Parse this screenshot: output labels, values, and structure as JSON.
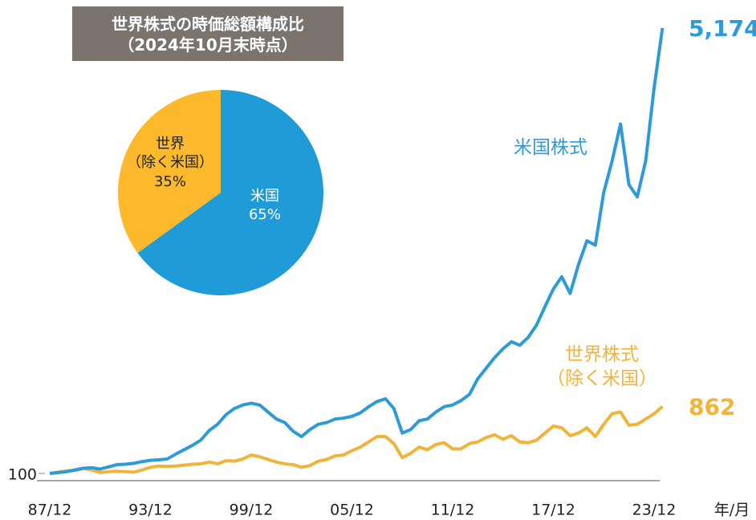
{
  "chart_data": [
    {
      "type": "line",
      "categories": [
        "87/12",
        null,
        null,
        null,
        null,
        null,
        null,
        null,
        null,
        null,
        null,
        null,
        "93/12",
        null,
        null,
        null,
        null,
        null,
        null,
        null,
        null,
        null,
        null,
        null,
        "99/12",
        null,
        null,
        null,
        null,
        null,
        null,
        null,
        null,
        null,
        null,
        null,
        "05/12",
        null,
        null,
        null,
        null,
        null,
        null,
        null,
        null,
        null,
        null,
        null,
        "11/12",
        null,
        null,
        null,
        null,
        null,
        null,
        null,
        null,
        null,
        null,
        null,
        "17/12",
        null,
        null,
        null,
        null,
        null,
        null,
        null,
        null,
        null,
        null,
        null,
        "23/12",
        null
      ],
      "x_unit_label": "年/月",
      "series": [
        {
          "name": "米国株式",
          "color": "#2e9bd8",
          "values": [
            100,
            110,
            120,
            140,
            160,
            165,
            150,
            175,
            200,
            205,
            215,
            235,
            250,
            255,
            265,
            320,
            370,
            420,
            480,
            590,
            660,
            770,
            840,
            880,
            900,
            880,
            800,
            720,
            680,
            580,
            520,
            600,
            660,
            680,
            720,
            730,
            750,
            790,
            860,
            920,
            950,
            840,
            560,
            600,
            700,
            720,
            800,
            860,
            880,
            930,
            1000,
            1180,
            1300,
            1420,
            1520,
            1600,
            1560,
            1650,
            1790,
            2000,
            2200,
            2340,
            2150,
            2480,
            2750,
            2700,
            3300,
            3660,
            4080,
            3390,
            3250,
            3660,
            4490,
            5174
          ],
          "value_labels": [
            null,
            null,
            null,
            null,
            null,
            null,
            null,
            null,
            null,
            null,
            null,
            null,
            null,
            null,
            null,
            null,
            null,
            null,
            null,
            null,
            null,
            null,
            null,
            null,
            null,
            null,
            null,
            null,
            null,
            null,
            null,
            null,
            null,
            null,
            null,
            null,
            null,
            null,
            null,
            null,
            null,
            null,
            null,
            null,
            null,
            null,
            null,
            null,
            null,
            null,
            null,
            null,
            null,
            null,
            null,
            null,
            null,
            null,
            null,
            null,
            null,
            null,
            null,
            null,
            null,
            null,
            null,
            null,
            null,
            null,
            null,
            null,
            null,
            "5,174"
          ]
        },
        {
          "name": "世界株式\n（除く米国）",
          "color": "#f1b43a",
          "values": [
            100,
            115,
            130,
            135,
            155,
            140,
            110,
            120,
            125,
            120,
            115,
            140,
            170,
            185,
            180,
            185,
            195,
            205,
            210,
            230,
            210,
            245,
            240,
            265,
            310,
            290,
            260,
            230,
            210,
            200,
            170,
            190,
            240,
            260,
            300,
            310,
            360,
            400,
            460,
            520,
            520,
            440,
            280,
            330,
            400,
            370,
            430,
            450,
            380,
            380,
            440,
            460,
            510,
            540,
            490,
            530,
            460,
            450,
            480,
            560,
            640,
            620,
            530,
            560,
            620,
            520,
            660,
            780,
            800,
            650,
            660,
            720,
            780,
            862
          ]
        }
      ],
      "ylim": [
        100,
        5200
      ],
      "yticks": [
        100
      ]
    },
    {
      "type": "pie",
      "title": "世界株式の時価総額構成比",
      "subtitle": "（2024年10月末時点）",
      "categories": [
        "米国",
        "世界\n（除く米国）"
      ],
      "values": [
        65,
        35
      ],
      "value_labels": [
        "65%",
        "35%"
      ],
      "colors": [
        "#1f9bd7",
        "#fbb92b"
      ]
    }
  ]
}
